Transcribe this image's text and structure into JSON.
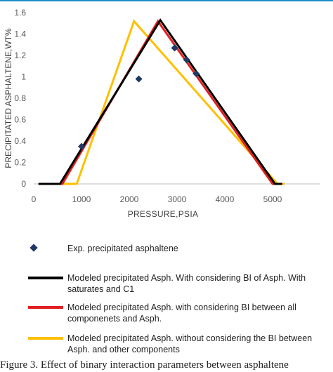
{
  "colors": {
    "accent_top": "#1f8fc9",
    "axis": "#bfbfbf",
    "grid": "#d9d9d9",
    "text": "#595959"
  },
  "chart_data": {
    "type": "line",
    "title": "",
    "xlabel": "PRESSURE,PSIA",
    "ylabel": "PRECIPITATED ASPHALTENE,WT%",
    "xlim": [
      0,
      6000
    ],
    "ylim": [
      0,
      1.6
    ],
    "x_ticks": [
      "0",
      "1000",
      "2000",
      "3000",
      "4000",
      "5000"
    ],
    "y_ticks": [
      "0",
      "0.2",
      "0.4",
      "0.6",
      "0.8",
      "1",
      "1.2",
      "1.4",
      "1.6"
    ],
    "grid": false,
    "legend_position": "bottom",
    "series": [
      {
        "name": "Exp. precipitated  asphaltene",
        "kind": "scatter",
        "color": "#1f3864",
        "points": [
          [
            1000,
            0.35
          ],
          [
            2200,
            0.98
          ],
          [
            2950,
            1.27
          ],
          [
            3200,
            1.16
          ],
          [
            3400,
            1.03
          ]
        ]
      },
      {
        "name": "Modeled precipitated Asph. With considering BI of Asph. With saturates and C1",
        "kind": "line",
        "color": "#000000",
        "points": [
          [
            100,
            0
          ],
          [
            550,
            0
          ],
          [
            2650,
            1.53
          ],
          [
            5050,
            0
          ],
          [
            5200,
            0
          ]
        ]
      },
      {
        "name": "Modeled precipitated Asph. with considering BI between all componenets and Asph.",
        "kind": "line",
        "color": "#e02020",
        "points": [
          [
            100,
            0
          ],
          [
            600,
            0
          ],
          [
            2600,
            1.52
          ],
          [
            5000,
            0
          ],
          [
            5200,
            0
          ]
        ]
      },
      {
        "name": "Modeled precipitated Asph. without considering the BI between Asph. and other components",
        "kind": "line",
        "color": "#ffc000",
        "points": [
          [
            100,
            0
          ],
          [
            900,
            0
          ],
          [
            2100,
            1.52
          ],
          [
            5100,
            0
          ],
          [
            5250,
            0
          ]
        ]
      }
    ]
  },
  "legend": [
    {
      "type": "marker",
      "color": "#1f3864",
      "label": "Exp. precipitated  asphaltene"
    },
    {
      "type": "line",
      "color": "#000000",
      "label": "Modeled precipitated Asph. With considering BI of Asph. With saturates and C1"
    },
    {
      "type": "line",
      "color": "#e02020",
      "label": "Modeled precipitated Asph. with considering BI between all componenets and Asph."
    },
    {
      "type": "line",
      "color": "#ffc000",
      "label": "Modeled precipitated Asph. without considering the BI between Asph. and other components"
    }
  ],
  "caption": "Figure 3. Effect of binary interaction parameters between asphaltene"
}
